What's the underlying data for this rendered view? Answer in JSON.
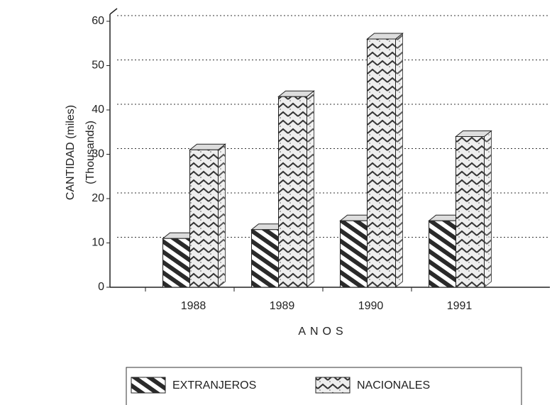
{
  "chart_data": {
    "type": "bar3d",
    "y_label": "CANTIDAD (miles)",
    "y_label_2": "(Thousands)",
    "x_label": "ANOS",
    "categories": [
      "1988",
      "1989",
      "1990",
      "1991"
    ],
    "series": [
      {
        "name": "EXTRANJEROS",
        "color": "#2a2a2a",
        "values": [
          11,
          13,
          15,
          15
        ]
      },
      {
        "name": "NACIONALES",
        "color": "#555555",
        "values": [
          31,
          43,
          56,
          34
        ]
      }
    ],
    "ylim": [
      0,
      60
    ],
    "yticks": [
      0,
      10,
      20,
      30,
      40,
      50,
      60
    ],
    "grid": true,
    "legend": "bottom"
  }
}
